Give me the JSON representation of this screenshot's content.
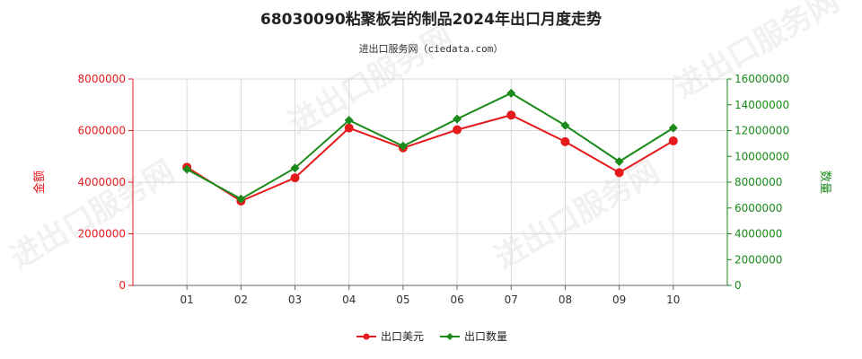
{
  "chart_data": {
    "type": "line",
    "title": "68030090粘聚板岩的制品2024年出口月度走势",
    "subtitle": "进出口服务网（ciedata.com）",
    "categories": [
      "01",
      "02",
      "03",
      "04",
      "05",
      "06",
      "07",
      "08",
      "09",
      "10"
    ],
    "series": [
      {
        "name": "出口美元",
        "axis": "left",
        "color": "#e41a1c",
        "values": [
          4580000,
          3270000,
          4170000,
          6100000,
          5330000,
          6030000,
          6600000,
          5570000,
          4370000,
          5600000
        ]
      },
      {
        "name": "出口数量",
        "axis": "right",
        "color": "#1a8a1a",
        "values": [
          9000000,
          6700000,
          9100000,
          12800000,
          10800000,
          12900000,
          14900000,
          12400000,
          9600000,
          12200000
        ]
      }
    ],
    "y_left": {
      "label": "金额",
      "min": 0,
      "max": 8000000,
      "ticks": [
        "0",
        "2000000",
        "4000000",
        "6000000",
        "8000000"
      ],
      "color": "#e41a1c"
    },
    "y_right": {
      "label": "数量",
      "min": 0,
      "max": 16000000,
      "ticks": [
        "0",
        "2000000",
        "4000000",
        "6000000",
        "8000000",
        "10000000",
        "12000000",
        "14000000",
        "16000000"
      ],
      "color": "#1a8a1a"
    },
    "grid": true,
    "legend_position": "bottom-center"
  }
}
